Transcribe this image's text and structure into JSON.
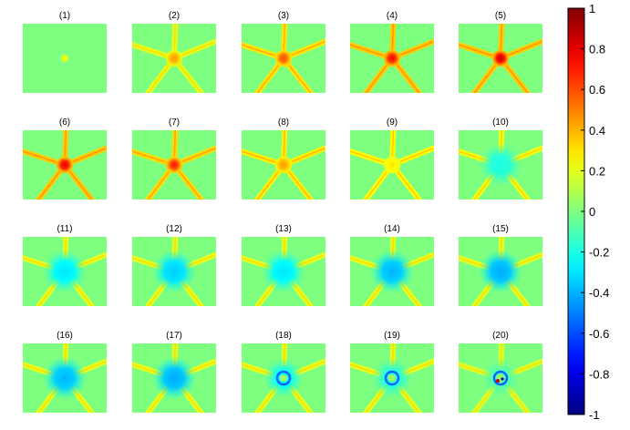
{
  "figure": {
    "panels": [
      {
        "label": "(1)",
        "arm_intensity": 0.0,
        "center_value": 0.3,
        "ring": false,
        "core_spot": false
      },
      {
        "label": "(2)",
        "arm_intensity": 0.2,
        "center_value": 0.45,
        "ring": false,
        "core_spot": false
      },
      {
        "label": "(3)",
        "arm_intensity": 0.3,
        "center_value": 0.6,
        "ring": false,
        "core_spot": false
      },
      {
        "label": "(4)",
        "arm_intensity": 0.35,
        "center_value": 0.75,
        "ring": false,
        "core_spot": false
      },
      {
        "label": "(5)",
        "arm_intensity": 0.35,
        "center_value": 0.85,
        "ring": false,
        "core_spot": false
      },
      {
        "label": "(6)",
        "arm_intensity": 0.35,
        "center_value": 0.8,
        "ring": false,
        "core_spot": false
      },
      {
        "label": "(7)",
        "arm_intensity": 0.32,
        "center_value": 0.7,
        "ring": false,
        "core_spot": false
      },
      {
        "label": "(8)",
        "arm_intensity": 0.28,
        "center_value": 0.45,
        "ring": false,
        "core_spot": false
      },
      {
        "label": "(9)",
        "arm_intensity": 0.25,
        "center_value": 0.3,
        "ring": false,
        "core_spot": false
      },
      {
        "label": "(10)",
        "arm_intensity": 0.22,
        "center_value": -0.2,
        "ring": false,
        "core_spot": false
      },
      {
        "label": "(11)",
        "arm_intensity": 0.2,
        "center_value": -0.3,
        "ring": false,
        "core_spot": false
      },
      {
        "label": "(12)",
        "arm_intensity": 0.2,
        "center_value": -0.35,
        "ring": false,
        "core_spot": false
      },
      {
        "label": "(13)",
        "arm_intensity": 0.2,
        "center_value": -0.3,
        "ring": false,
        "core_spot": false
      },
      {
        "label": "(14)",
        "arm_intensity": 0.2,
        "center_value": -0.4,
        "ring": false,
        "core_spot": false
      },
      {
        "label": "(15)",
        "arm_intensity": 0.2,
        "center_value": -0.42,
        "ring": false,
        "core_spot": false
      },
      {
        "label": "(16)",
        "arm_intensity": 0.2,
        "center_value": -0.4,
        "ring": false,
        "core_spot": false
      },
      {
        "label": "(17)",
        "arm_intensity": 0.2,
        "center_value": -0.42,
        "ring": false,
        "core_spot": false
      },
      {
        "label": "(18)",
        "arm_intensity": 0.2,
        "center_value": -0.25,
        "ring": true,
        "core_spot": false
      },
      {
        "label": "(19)",
        "arm_intensity": 0.2,
        "center_value": -0.2,
        "ring": true,
        "core_spot": false
      },
      {
        "label": "(20)",
        "arm_intensity": 0.18,
        "center_value": -0.1,
        "ring": true,
        "core_spot": true
      }
    ]
  },
  "colorbar": {
    "min": -1,
    "max": 1,
    "colormap": "jet",
    "ticks": [
      {
        "value": 1,
        "label": "1"
      },
      {
        "value": 0.8,
        "label": "0.8"
      },
      {
        "value": 0.6,
        "label": "0.6"
      },
      {
        "value": 0.4,
        "label": "0.4"
      },
      {
        "value": 0.2,
        "label": "0.2"
      },
      {
        "value": 0,
        "label": "0"
      },
      {
        "value": -0.2,
        "label": "-0.2"
      },
      {
        "value": -0.4,
        "label": "-0.4"
      },
      {
        "value": -0.6,
        "label": "-0.6"
      },
      {
        "value": -0.8,
        "label": "-0.8"
      },
      {
        "value": -1,
        "label": "-1"
      }
    ]
  },
  "colors": {
    "background_field": "#7fff7f"
  }
}
